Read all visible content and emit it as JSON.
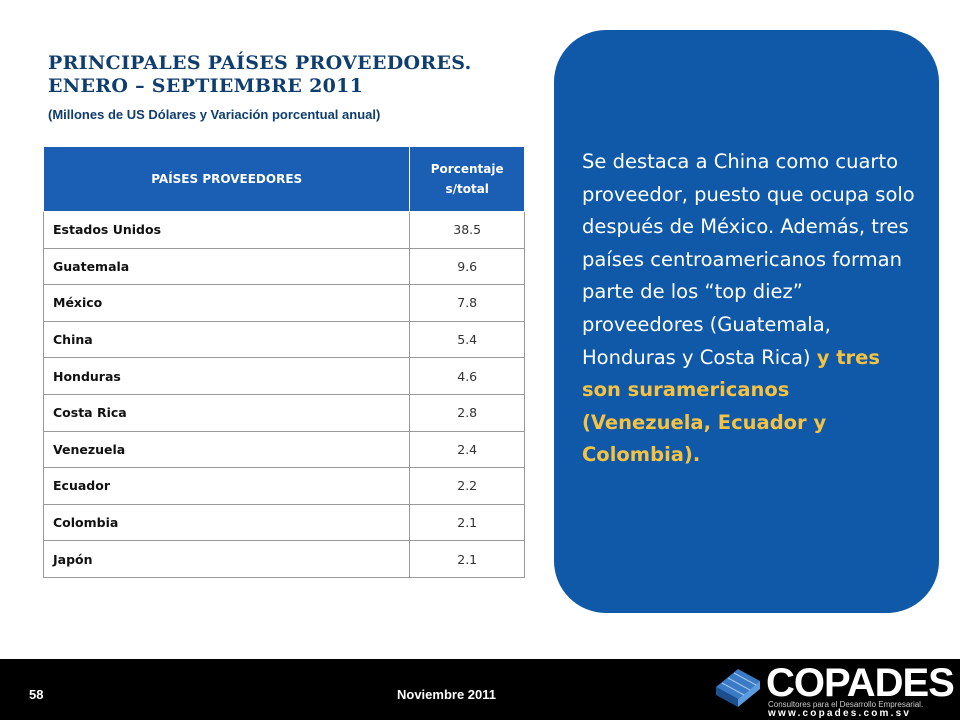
{
  "header": {
    "title_line1": "PRINCIPALES PAÍSES PROVEEDORES.",
    "title_line2": "ENERO – SEPTIEMBRE 2011",
    "subtitle": "(Millones de US Dólares y Variación porcentual anual)"
  },
  "table": {
    "headers": {
      "country": "PAÍSES PROVEEDORES",
      "pct_line1": "Porcentaje",
      "pct_line2": "s/total"
    },
    "rows": [
      {
        "country": "Estados Unidos",
        "pct": "38.5"
      },
      {
        "country": "Guatemala",
        "pct": "9.6"
      },
      {
        "country": "México",
        "pct": "7.8"
      },
      {
        "country": "China",
        "pct": "5.4"
      },
      {
        "country": "Honduras",
        "pct": "4.6"
      },
      {
        "country": "Costa Rica",
        "pct": "2.8"
      },
      {
        "country": "Venezuela",
        "pct": "2.4"
      },
      {
        "country": "Ecuador",
        "pct": "2.2"
      },
      {
        "country": "Colombia",
        "pct": "2.1"
      },
      {
        "country": "Japón",
        "pct": "2.1"
      }
    ]
  },
  "panel": {
    "text_main": "Se destaca a China como cuarto proveedor, puesto que ocupa solo después de México. Además, tres países centroamericanos forman parte de los “top diez” proveedores (Guatemala, Honduras y Costa Rica)",
    "text_highlight": "y tres son suramericanos (Venezuela, Ecuador y Colombia).",
    "highlight_color": "#f5c242",
    "background_color": "#0f59a8"
  },
  "footer": {
    "page_number": "58",
    "date": "Noviembre 2011",
    "logo_name": "COPADES",
    "logo_tagline": "Consultores para el Desarrollo Empresarial.",
    "logo_url": "www.copades.com.sv"
  }
}
